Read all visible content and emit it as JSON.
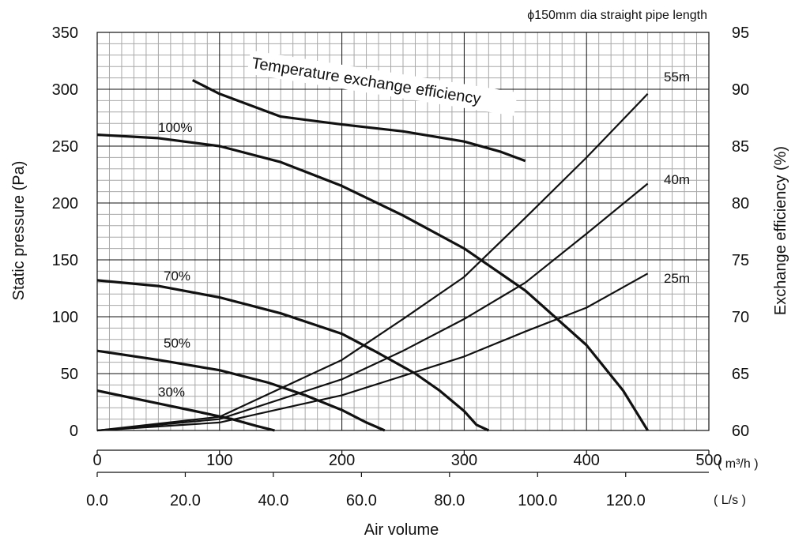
{
  "chart_data": {
    "type": "line",
    "title": "",
    "top_note": "ϕ150mm dia straight pipe length",
    "xlabel": "Air volume",
    "x_unit_primary": "( m³/h )",
    "x_unit_secondary": "( L/s )",
    "ylabel_left": "Static pressure (Pa)",
    "ylabel_right": "Exchange efficiency (%)",
    "xlim": [
      0,
      450
    ],
    "ylim_left": [
      0,
      350
    ],
    "ylim_right": [
      60,
      95
    ],
    "x_ticks_m3h": [
      "0",
      "100",
      "200",
      "300",
      "400",
      "500"
    ],
    "x_ticks_ls": [
      "0.0",
      "20.0",
      "40.0",
      "60.0",
      "80.0",
      "100.0",
      "120.0"
    ],
    "y_ticks_left": [
      "0",
      "50",
      "100",
      "150",
      "200",
      "250",
      "300",
      "350"
    ],
    "y_ticks_right": [
      "60",
      "65",
      "70",
      "75",
      "80",
      "85",
      "90",
      "95"
    ],
    "grid": true,
    "fan_curves": [
      {
        "name": "100%",
        "x": [
          0,
          50,
          100,
          150,
          200,
          250,
          300,
          350,
          400,
          430,
          450
        ],
        "y": [
          260,
          257,
          250,
          236,
          215,
          189,
          160,
          123,
          75,
          35,
          0
        ]
      },
      {
        "name": "70%",
        "x": [
          0,
          50,
          100,
          150,
          200,
          230,
          260,
          280,
          300,
          310,
          320
        ],
        "y": [
          132,
          127,
          117,
          103,
          85,
          68,
          50,
          35,
          17,
          5,
          0
        ]
      },
      {
        "name": "50%",
        "x": [
          0,
          50,
          100,
          140,
          170,
          200,
          220,
          235
        ],
        "y": [
          70,
          62,
          53,
          42,
          31,
          18,
          7,
          0
        ]
      },
      {
        "name": "30%",
        "x": [
          0,
          40,
          80,
          110,
          130,
          145
        ],
        "y": [
          35,
          26,
          17,
          10,
          4,
          0
        ]
      }
    ],
    "duct_curves": [
      {
        "name": "55m",
        "x": [
          0,
          100,
          200,
          250,
          300,
          350,
          400,
          450
        ],
        "y": [
          0,
          12,
          62,
          98,
          135,
          187,
          240,
          296
        ]
      },
      {
        "name": "40m",
        "x": [
          0,
          100,
          200,
          250,
          300,
          350,
          400,
          450
        ],
        "y": [
          0,
          10,
          45,
          70,
          98,
          130,
          173,
          217
        ]
      },
      {
        "name": "25m",
        "x": [
          0,
          100,
          200,
          250,
          300,
          350,
          400,
          450
        ],
        "y": [
          0,
          7,
          31,
          48,
          65,
          87,
          108,
          138
        ]
      }
    ],
    "efficiency_curve": {
      "name": "Temperature exchange efficiency",
      "x": [
        78,
        100,
        150,
        200,
        250,
        300,
        330,
        350
      ],
      "y": [
        90.8,
        89.6,
        87.6,
        86.9,
        86.3,
        85.4,
        84.5,
        83.7
      ]
    }
  }
}
